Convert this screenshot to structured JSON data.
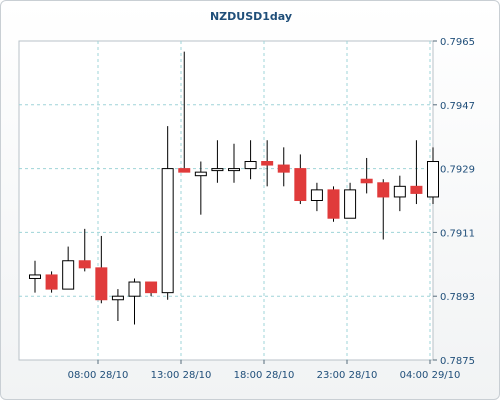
{
  "chart_data": {
    "type": "candlestick",
    "title": "NZDUSD1day",
    "xlabel": "",
    "ylabel": "",
    "ylim": [
      0.7875,
      0.7965
    ],
    "y_ticks": [
      "0.7965",
      "0.7947",
      "0.7929",
      "0.7911",
      "0.7893",
      "0.7875"
    ],
    "x_ticks": [
      "08:00 28/10",
      "13:00 28/10",
      "18:00 28/10",
      "23:00 28/10",
      "04:00 29/10"
    ],
    "grid": true,
    "colors": {
      "up_fill": "#ffffff",
      "down_fill": "#e03b3b",
      "wick": "#000000",
      "grid": "#9fd4d8",
      "text": "#1f4e79"
    },
    "candles": [
      {
        "o": 0.7898,
        "h": 0.7903,
        "l": 0.7894,
        "c": 0.7899
      },
      {
        "o": 0.7899,
        "h": 0.79,
        "l": 0.7894,
        "c": 0.7895
      },
      {
        "o": 0.7895,
        "h": 0.7907,
        "l": 0.7895,
        "c": 0.7903
      },
      {
        "o": 0.7903,
        "h": 0.7912,
        "l": 0.79,
        "c": 0.7901
      },
      {
        "o": 0.7901,
        "h": 0.791,
        "l": 0.7891,
        "c": 0.7892
      },
      {
        "o": 0.7892,
        "h": 0.7895,
        "l": 0.7886,
        "c": 0.7893
      },
      {
        "o": 0.7893,
        "h": 0.7898,
        "l": 0.7885,
        "c": 0.7897
      },
      {
        "o": 0.7897,
        "h": 0.7897,
        "l": 0.7893,
        "c": 0.7894
      },
      {
        "o": 0.7894,
        "h": 0.7941,
        "l": 0.7892,
        "c": 0.7929
      },
      {
        "o": 0.7929,
        "h": 0.7962,
        "l": 0.7928,
        "c": 0.7928
      },
      {
        "o": 0.7927,
        "h": 0.7931,
        "l": 0.7916,
        "c": 0.7928
      },
      {
        "o": 0.7929,
        "h": 0.7937,
        "l": 0.7925,
        "c": 0.7929
      },
      {
        "o": 0.7929,
        "h": 0.7936,
        "l": 0.7925,
        "c": 0.7929
      },
      {
        "o": 0.7929,
        "h": 0.7937,
        "l": 0.7926,
        "c": 0.7931
      },
      {
        "o": 0.7931,
        "h": 0.7937,
        "l": 0.7924,
        "c": 0.793
      },
      {
        "o": 0.793,
        "h": 0.7935,
        "l": 0.7924,
        "c": 0.7928
      },
      {
        "o": 0.7929,
        "h": 0.7933,
        "l": 0.7919,
        "c": 0.792
      },
      {
        "o": 0.792,
        "h": 0.7925,
        "l": 0.7917,
        "c": 0.7923
      },
      {
        "o": 0.7923,
        "h": 0.7924,
        "l": 0.7914,
        "c": 0.7915
      },
      {
        "o": 0.7915,
        "h": 0.7925,
        "l": 0.7915,
        "c": 0.7923
      },
      {
        "o": 0.7926,
        "h": 0.7932,
        "l": 0.7922,
        "c": 0.7925
      },
      {
        "o": 0.7925,
        "h": 0.7926,
        "l": 0.7909,
        "c": 0.7921
      },
      {
        "o": 0.7921,
        "h": 0.7927,
        "l": 0.7917,
        "c": 0.7924
      },
      {
        "o": 0.7924,
        "h": 0.7937,
        "l": 0.7919,
        "c": 0.7922
      },
      {
        "o": 0.7921,
        "h": 0.7935,
        "l": 0.7919,
        "c": 0.7931
      }
    ]
  }
}
